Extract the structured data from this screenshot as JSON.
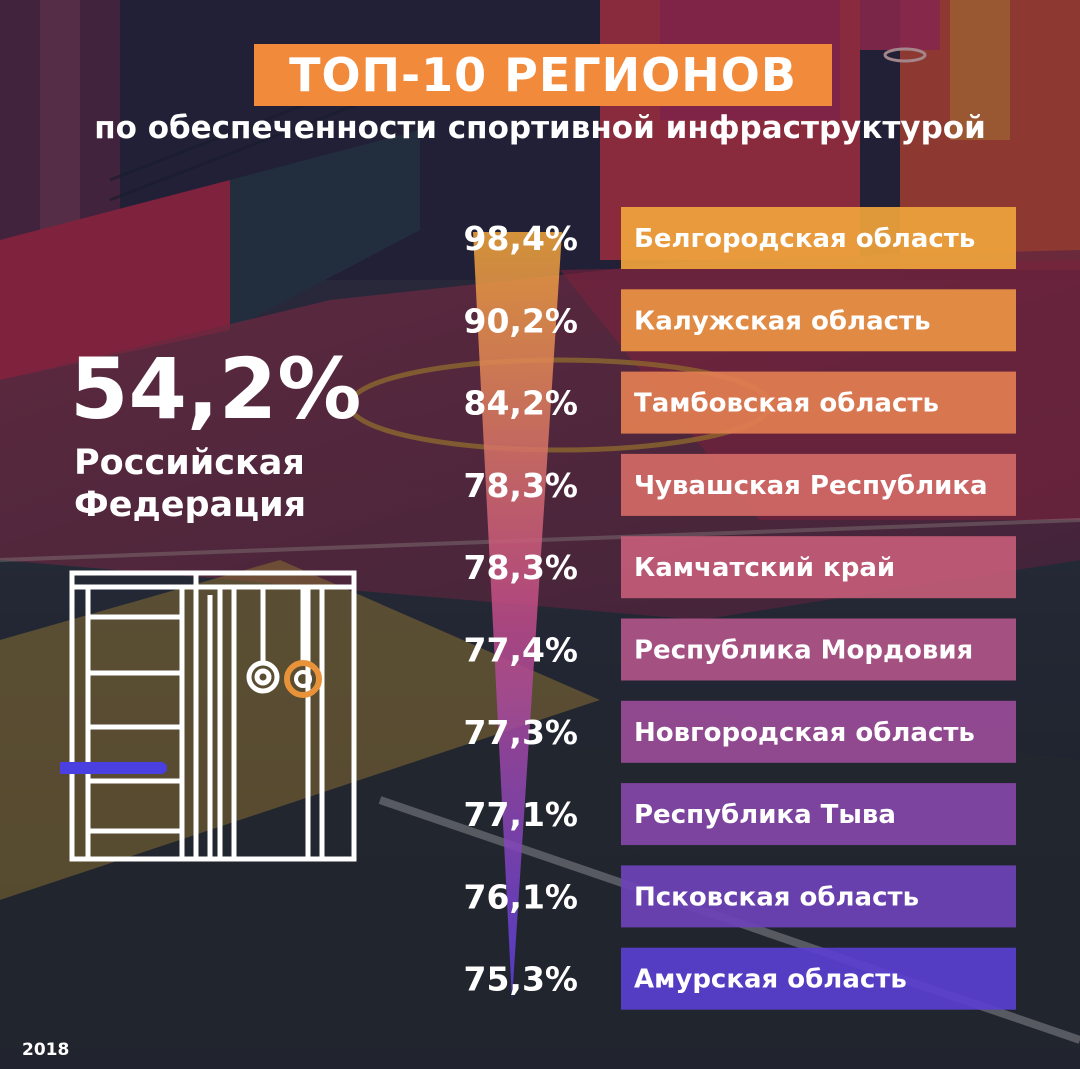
{
  "title": "ТОП-10 РЕГИОНОВ",
  "subtitle": "по обеспеченности спортивной инфраструктурой",
  "russia": {
    "value": "54,2%",
    "label_line1": "Российская",
    "label_line2": "Федерация"
  },
  "year": "2018",
  "colors": {
    "title_bg": "#f28a3c",
    "gradient_top": "#f2a63a",
    "gradient_mid": "#c24c8a",
    "gradient_bottom": "#4a3fd8",
    "ring_accent": "#e8923a",
    "bar_accent": "#4a3fe0"
  },
  "icon": "wall-bars-with-rings-icon",
  "chart_data": {
    "type": "bar",
    "categories": [
      "Белгородская область",
      "Калужская область",
      "Тамбовская область",
      "Чувашская Республика",
      "Камчатский край",
      "Республика Мордовия",
      "Новгородская область",
      "Республика Тыва",
      "Псковская область",
      "Амурская область"
    ],
    "values": [
      98.4,
      90.2,
      84.2,
      78.3,
      78.3,
      77.4,
      77.3,
      77.1,
      76.1,
      75.3
    ],
    "value_labels": [
      "98,4%",
      "90,2%",
      "84,2%",
      "78,3%",
      "78,3%",
      "77,4%",
      "77,3%",
      "77,1%",
      "76,1%",
      "75,3%"
    ],
    "title": "ТОП-10 РЕГИОНОВ"
  }
}
